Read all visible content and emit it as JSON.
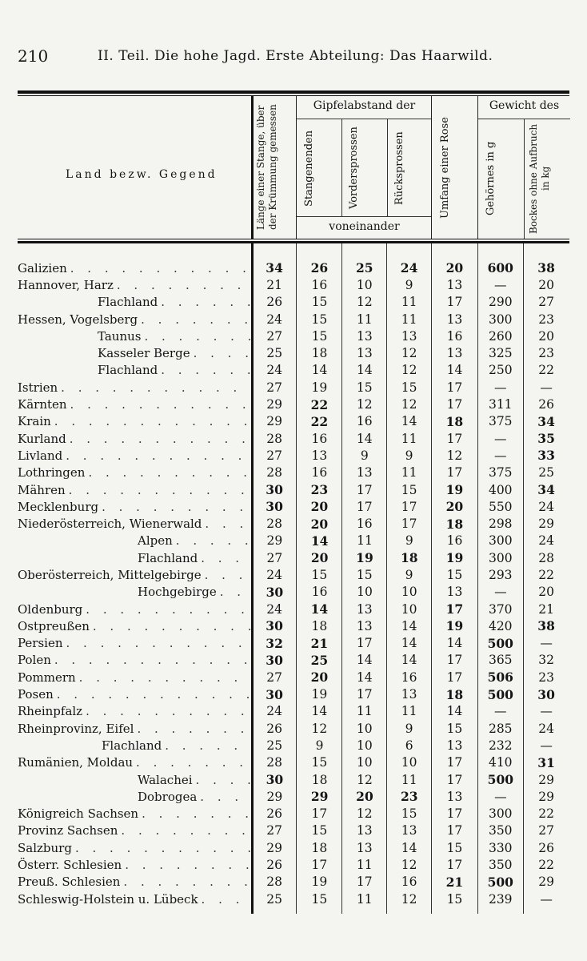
{
  "page_number": "210",
  "running_head": "II. Teil. Die hohe Jagd. Erste Abteilung: Das Haarwild.",
  "table": {
    "headers": {
      "land": "Land bezw. Gegend",
      "laenge": "Länge einer Stange, über der Krümmung gemessen",
      "gipfel_group": "Gipfelabstand der",
      "stangenenden": "Stangenenden",
      "vordersprossen": "Vordersprossen",
      "ruecksprossen": "Rücksprossen",
      "voneinander": "voneinander",
      "umfang": "Umfang einer Rose",
      "gewicht_group": "Gewicht des",
      "gehoern": "Gehörnes in g",
      "bock": "Bockes ohne Aufbruch in kg"
    },
    "rows": [
      {
        "land": "Galizien",
        "indent": 0,
        "values": [
          "34",
          "26",
          "25",
          "24",
          "20",
          "600",
          "38"
        ],
        "bold": [
          0,
          1,
          2,
          3,
          4,
          5,
          6
        ]
      },
      {
        "land": "Hannover, Harz",
        "indent": 0,
        "values": [
          "21",
          "16",
          "10",
          "9",
          "13",
          "—",
          "20"
        ],
        "bold": []
      },
      {
        "land": "Flachland",
        "indent": 1,
        "values": [
          "26",
          "15",
          "12",
          "11",
          "17",
          "290",
          "27"
        ],
        "bold": []
      },
      {
        "land": "Hessen, Vogelsberg",
        "indent": 0,
        "values": [
          "24",
          "15",
          "11",
          "11",
          "13",
          "300",
          "23"
        ],
        "bold": []
      },
      {
        "land": "Taunus",
        "indent": 1,
        "values": [
          "27",
          "15",
          "13",
          "13",
          "16",
          "260",
          "20"
        ],
        "bold": []
      },
      {
        "land": "Kasseler Berge",
        "indent": 1,
        "values": [
          "25",
          "18",
          "13",
          "12",
          "13",
          "325",
          "23"
        ],
        "bold": []
      },
      {
        "land": "Flachland",
        "indent": 1,
        "values": [
          "24",
          "14",
          "14",
          "12",
          "14",
          "250",
          "22"
        ],
        "bold": []
      },
      {
        "land": "Istrien",
        "indent": 0,
        "values": [
          "27",
          "19",
          "15",
          "15",
          "17",
          "—",
          "—"
        ],
        "bold": []
      },
      {
        "land": "Kärnten",
        "indent": 0,
        "values": [
          "29",
          "22",
          "12",
          "12",
          "17",
          "311",
          "26"
        ],
        "bold": [
          1
        ]
      },
      {
        "land": "Krain",
        "indent": 0,
        "values": [
          "29",
          "22",
          "16",
          "14",
          "18",
          "375",
          "34"
        ],
        "bold": [
          1,
          4,
          6
        ]
      },
      {
        "land": "Kurland",
        "indent": 0,
        "values": [
          "28",
          "16",
          "14",
          "11",
          "17",
          "—",
          "35"
        ],
        "bold": [
          6
        ]
      },
      {
        "land": "Livland",
        "indent": 0,
        "values": [
          "27",
          "13",
          "9",
          "9",
          "12",
          "—",
          "33"
        ],
        "bold": [
          6
        ]
      },
      {
        "land": "Lothringen",
        "indent": 0,
        "values": [
          "28",
          "16",
          "13",
          "11",
          "17",
          "375",
          "25"
        ],
        "bold": []
      },
      {
        "land": "Mähren",
        "indent": 0,
        "values": [
          "30",
          "23",
          "17",
          "15",
          "19",
          "400",
          "34"
        ],
        "bold": [
          0,
          1,
          4,
          6
        ]
      },
      {
        "land": "Mecklenburg",
        "indent": 0,
        "values": [
          "30",
          "20",
          "17",
          "17",
          "20",
          "550",
          "24"
        ],
        "bold": [
          0,
          1,
          4
        ]
      },
      {
        "land": "Niederösterreich, Wienerwald",
        "indent": 0,
        "values": [
          "28",
          "20",
          "16",
          "17",
          "18",
          "298",
          "29"
        ],
        "bold": [
          1,
          4
        ]
      },
      {
        "land": "Alpen",
        "indent": 2,
        "values": [
          "29",
          "14",
          "11",
          "9",
          "16",
          "300",
          "24"
        ],
        "bold": [
          1
        ]
      },
      {
        "land": "Flachland",
        "indent": 2,
        "values": [
          "27",
          "20",
          "19",
          "18",
          "19",
          "300",
          "28"
        ],
        "bold": [
          1,
          2,
          3,
          4
        ]
      },
      {
        "land": "Oberösterreich, Mittelgebirge",
        "indent": 0,
        "values": [
          "24",
          "15",
          "15",
          "9",
          "15",
          "293",
          "22"
        ],
        "bold": []
      },
      {
        "land": "Hochgebirge",
        "indent": 2,
        "values": [
          "30",
          "16",
          "10",
          "10",
          "13",
          "—",
          "20"
        ],
        "bold": [
          0
        ]
      },
      {
        "land": "Oldenburg",
        "indent": 0,
        "values": [
          "24",
          "14",
          "13",
          "10",
          "17",
          "370",
          "21"
        ],
        "bold": [
          1,
          4
        ]
      },
      {
        "land": "Ostpreußen",
        "indent": 0,
        "values": [
          "30",
          "18",
          "13",
          "14",
          "19",
          "420",
          "38"
        ],
        "bold": [
          0,
          4,
          6
        ]
      },
      {
        "land": "Persien",
        "indent": 0,
        "values": [
          "32",
          "21",
          "17",
          "14",
          "14",
          "500",
          "—"
        ],
        "bold": [
          0,
          1,
          5
        ]
      },
      {
        "land": "Polen",
        "indent": 0,
        "values": [
          "30",
          "25",
          "14",
          "14",
          "17",
          "365",
          "32"
        ],
        "bold": [
          0,
          1
        ]
      },
      {
        "land": "Pommern",
        "indent": 0,
        "values": [
          "27",
          "20",
          "14",
          "16",
          "17",
          "506",
          "23"
        ],
        "bold": [
          1,
          5
        ]
      },
      {
        "land": "Posen",
        "indent": 0,
        "values": [
          "30",
          "19",
          "17",
          "13",
          "18",
          "500",
          "30"
        ],
        "bold": [
          0,
          4,
          5,
          6
        ]
      },
      {
        "land": "Rheinpfalz",
        "indent": 0,
        "values": [
          "24",
          "14",
          "11",
          "11",
          "14",
          "—",
          "—"
        ],
        "bold": []
      },
      {
        "land": "Rheinprovinz, Eifel",
        "indent": 0,
        "values": [
          "26",
          "12",
          "10",
          "9",
          "15",
          "285",
          "24"
        ],
        "bold": []
      },
      {
        "land": "Flachland",
        "indent": 3,
        "values": [
          "25",
          "9",
          "10",
          "6",
          "13",
          "232",
          "—"
        ],
        "bold": []
      },
      {
        "land": "Rumänien, Moldau",
        "indent": 0,
        "values": [
          "28",
          "15",
          "10",
          "10",
          "17",
          "410",
          "31"
        ],
        "bold": [
          6
        ]
      },
      {
        "land": "Walachei",
        "indent": 2,
        "values": [
          "30",
          "18",
          "12",
          "11",
          "17",
          "500",
          "29"
        ],
        "bold": [
          0,
          5
        ]
      },
      {
        "land": "Dobrogea",
        "indent": 2,
        "values": [
          "29",
          "29",
          "20",
          "23",
          "13",
          "—",
          "29"
        ],
        "bold": [
          1,
          2,
          3
        ]
      },
      {
        "land": "Königreich Sachsen",
        "indent": 0,
        "values": [
          "26",
          "17",
          "12",
          "15",
          "17",
          "300",
          "22"
        ],
        "bold": []
      },
      {
        "land": "Provinz Sachsen",
        "indent": 0,
        "values": [
          "27",
          "15",
          "13",
          "13",
          "17",
          "350",
          "27"
        ],
        "bold": []
      },
      {
        "land": "Salzburg",
        "indent": 0,
        "values": [
          "29",
          "18",
          "13",
          "14",
          "15",
          "330",
          "26"
        ],
        "bold": []
      },
      {
        "land": "Österr. Schlesien",
        "indent": 0,
        "values": [
          "26",
          "17",
          "11",
          "12",
          "17",
          "350",
          "22"
        ],
        "bold": []
      },
      {
        "land": "Preuß. Schlesien",
        "indent": 0,
        "values": [
          "28",
          "19",
          "17",
          "16",
          "21",
          "500",
          "29"
        ],
        "bold": [
          4,
          5
        ]
      },
      {
        "land": "Schleswig-Holstein u. Lübeck",
        "indent": 0,
        "values": [
          "25",
          "15",
          "11",
          "12",
          "15",
          "239",
          "—"
        ],
        "bold": []
      }
    ]
  }
}
